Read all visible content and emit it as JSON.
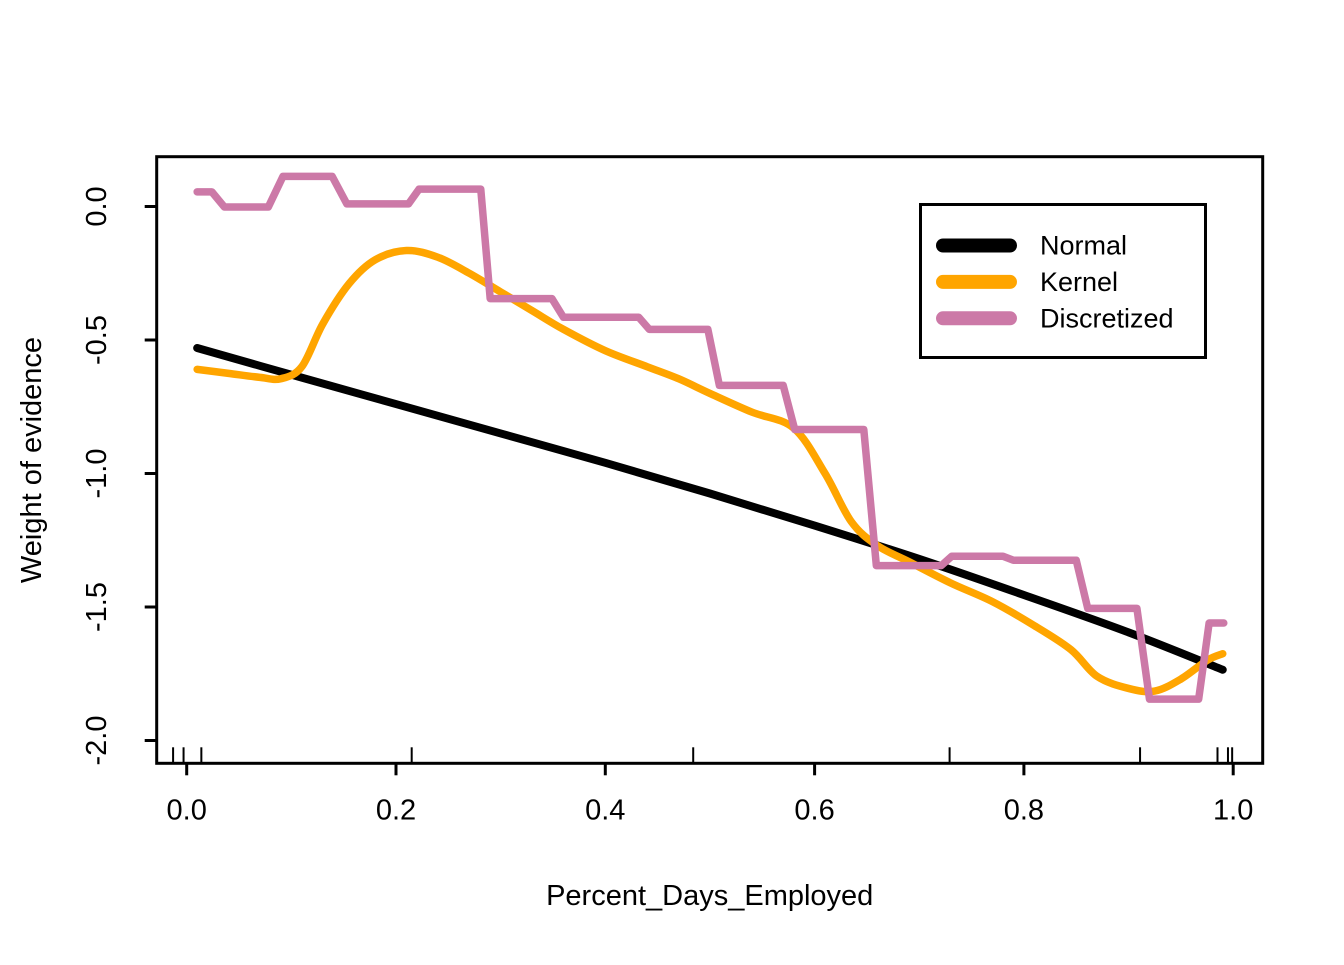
{
  "chart_data": {
    "type": "line",
    "title": "",
    "xlabel": "Percent_Days_Employed",
    "ylabel": "Weight of evidence",
    "xlim": [
      -0.029,
      1.028
    ],
    "ylim": [
      -2.085,
      0.187
    ],
    "grid": false,
    "legend_position": "top-right",
    "x_ticks": [
      0.0,
      0.2,
      0.4,
      0.6,
      0.8,
      1.0
    ],
    "x_tick_labels": [
      "0.0",
      "0.2",
      "0.4",
      "0.6",
      "0.8",
      "1.0"
    ],
    "y_ticks": [
      0.0,
      -0.5,
      -1.0,
      -1.5,
      -2.0
    ],
    "y_tick_labels": [
      "0.0",
      "-0.5",
      "-1.0",
      "-1.5",
      "-2.0"
    ],
    "rug_x": [
      -0.013,
      -0.003,
      0.014,
      0.215,
      0.484,
      0.729,
      0.911,
      0.985,
      0.995,
      0.999
    ],
    "series": [
      {
        "name": "Normal",
        "color": "#000000",
        "smooth": true,
        "line_width": 8,
        "x": [
          0.01,
          0.1,
          0.2,
          0.3,
          0.4,
          0.5,
          0.6,
          0.7,
          0.8,
          0.9,
          0.99
        ],
        "y": [
          -0.53,
          -0.63,
          -0.74,
          -0.85,
          -0.96,
          -1.075,
          -1.195,
          -1.32,
          -1.455,
          -1.595,
          -1.735
        ]
      },
      {
        "name": "Kernel",
        "color": "#FFA500",
        "smooth": true,
        "line_width": 7.5,
        "x": [
          0.01,
          0.04,
          0.07,
          0.09,
          0.11,
          0.13,
          0.155,
          0.18,
          0.21,
          0.24,
          0.27,
          0.3,
          0.33,
          0.36,
          0.4,
          0.44,
          0.47,
          0.5,
          0.54,
          0.58,
          0.61,
          0.635,
          0.66,
          0.69,
          0.73,
          0.77,
          0.81,
          0.845,
          0.87,
          0.9,
          0.925,
          0.95,
          0.975,
          0.99
        ],
        "y": [
          -0.61,
          -0.625,
          -0.64,
          -0.645,
          -0.6,
          -0.44,
          -0.29,
          -0.2,
          -0.165,
          -0.19,
          -0.25,
          -0.32,
          -0.39,
          -0.46,
          -0.54,
          -0.6,
          -0.645,
          -0.7,
          -0.77,
          -0.83,
          -1.0,
          -1.18,
          -1.27,
          -1.33,
          -1.41,
          -1.48,
          -1.57,
          -1.66,
          -1.76,
          -1.805,
          -1.815,
          -1.77,
          -1.7,
          -1.675
        ]
      },
      {
        "name": "Discretized",
        "color": "#CC79A7",
        "smooth": false,
        "line_width": 7.5,
        "x": [
          0.01,
          0.024,
          0.036,
          0.078,
          0.092,
          0.139,
          0.153,
          0.212,
          0.222,
          0.281,
          0.29,
          0.349,
          0.36,
          0.432,
          0.442,
          0.498,
          0.509,
          0.57,
          0.581,
          0.647,
          0.659,
          0.721,
          0.731,
          0.78,
          0.79,
          0.85,
          0.861,
          0.908,
          0.92,
          0.967,
          0.977,
          0.991
        ],
        "y": [
          0.055,
          0.055,
          -0.002,
          -0.002,
          0.113,
          0.113,
          0.01,
          0.01,
          0.065,
          0.065,
          -0.345,
          -0.345,
          -0.415,
          -0.415,
          -0.46,
          -0.46,
          -0.67,
          -0.67,
          -0.835,
          -0.835,
          -1.345,
          -1.345,
          -1.31,
          -1.31,
          -1.325,
          -1.325,
          -1.505,
          -1.505,
          -1.845,
          -1.845,
          -1.56,
          -1.56
        ]
      }
    ]
  },
  "legend": {
    "items": [
      {
        "label": "Normal",
        "color": "#000000"
      },
      {
        "label": "Kernel",
        "color": "#FFA500"
      },
      {
        "label": "Discretized",
        "color": "#CC79A7"
      }
    ]
  }
}
